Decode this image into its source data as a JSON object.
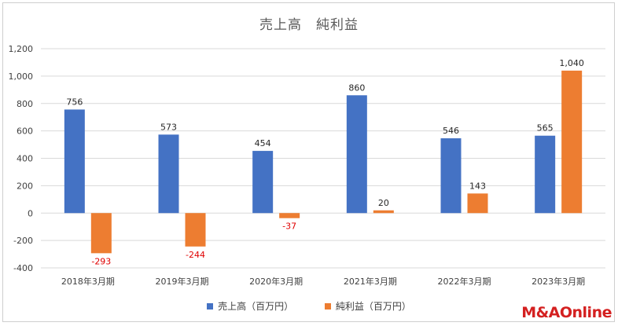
{
  "chart_data": {
    "type": "bar",
    "title": "売上高　純利益",
    "categories": [
      "2018年3月期",
      "2019年3月期",
      "2020年3月期",
      "2021年3月期",
      "2022年3月期",
      "2023年3月期"
    ],
    "series": [
      {
        "name": "売上高（百万円）",
        "values": [
          756,
          573,
          454,
          860,
          546,
          565
        ],
        "color": "#4472c4",
        "label_color": "#262626"
      },
      {
        "name": "純利益（百万円）",
        "values": [
          -293,
          -244,
          -37,
          20,
          143,
          1040
        ],
        "color": "#ed7d31",
        "label_color": "#262626",
        "negative_label_color": "#e00000"
      }
    ],
    "data_labels": [
      [
        "756",
        "573",
        "454",
        "860",
        "546",
        "565"
      ],
      [
        "-293",
        "-244",
        "-37",
        "20",
        "143",
        "1,040"
      ]
    ],
    "ylim": [
      -400,
      1200
    ],
    "yticks": [
      -400,
      -200,
      0,
      200,
      400,
      600,
      800,
      1000,
      1200
    ],
    "ytick_labels": [
      "-400",
      "-200",
      "0",
      "200",
      "400",
      "600",
      "800",
      "1,000",
      "1,200"
    ],
    "grid": true,
    "legend_position": "bottom",
    "grid_color": "#d9d9d9"
  },
  "logo_text": "M&AOnline"
}
